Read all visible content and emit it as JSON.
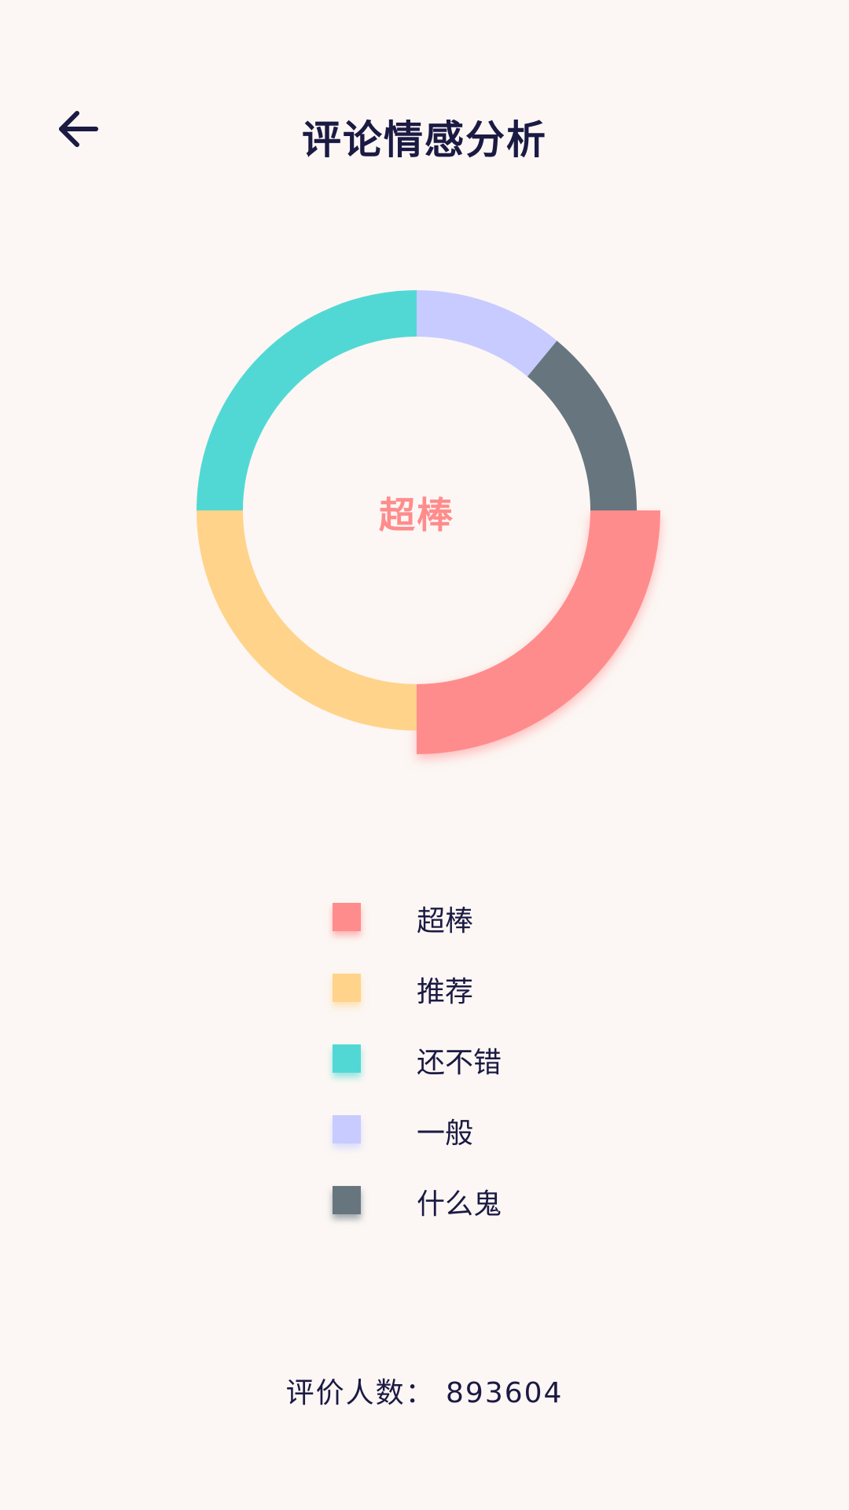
{
  "header": {
    "title": "评论情感分析",
    "back_icon": "arrow-left-icon"
  },
  "chart_data": {
    "type": "pie",
    "variant": "donut",
    "center_label": "超棒",
    "highlighted": "超棒",
    "categories": [
      "超棒",
      "推荐",
      "还不错",
      "一般",
      "什么鬼"
    ],
    "values": [
      25,
      25,
      25,
      11,
      14
    ],
    "colors": [
      "#FF8C8C",
      "#FFD38A",
      "#52D8D4",
      "#C7CBFF",
      "#67767E"
    ],
    "legend_position": "bottom"
  },
  "footer": {
    "text": "评价人数：  893604"
  }
}
